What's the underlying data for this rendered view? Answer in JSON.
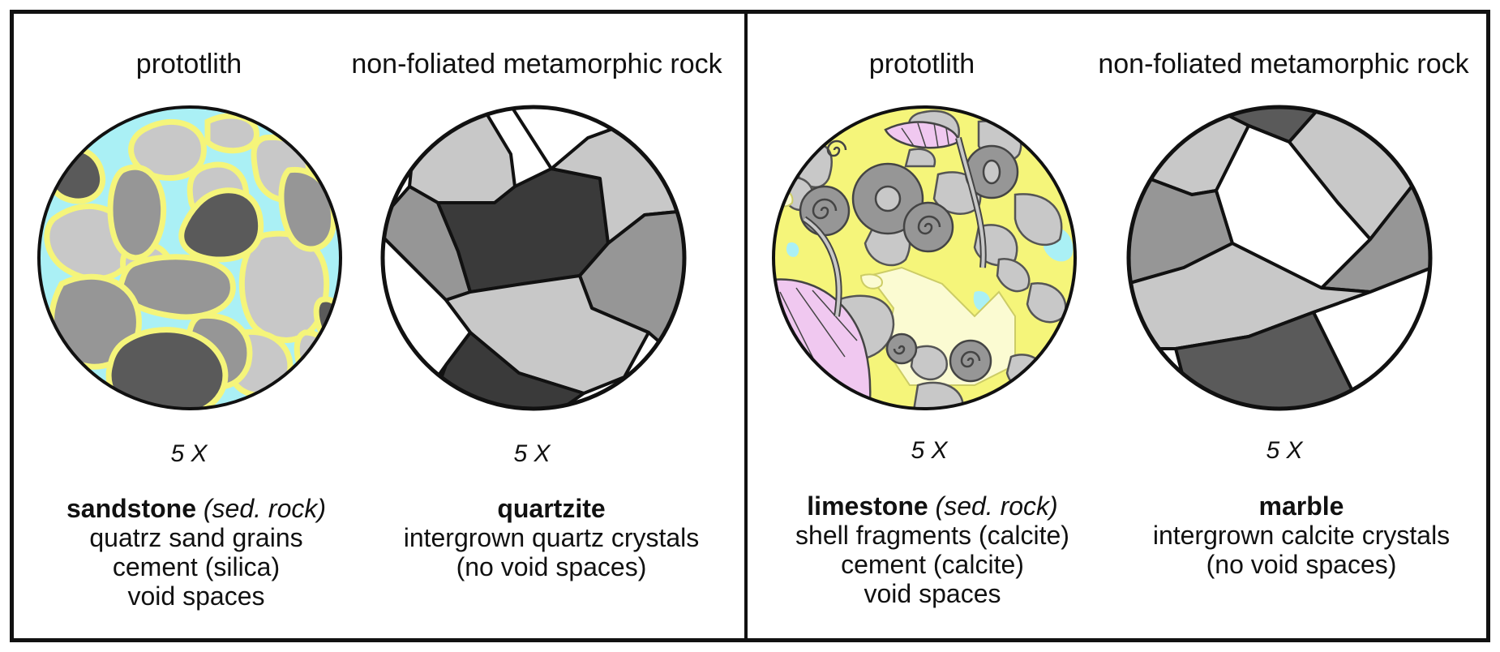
{
  "panels": [
    {
      "left": {
        "heading": "prototlith",
        "magnification": "5 X",
        "name": "sandstone",
        "qualifier": "(sed. rock)",
        "lines": [
          "quatrz sand grains",
          "cement (silica)",
          "void spaces"
        ]
      },
      "right": {
        "heading": "non-foliated metamorphic rock",
        "magnification": "5 X",
        "name": "quartzite",
        "lines": [
          "intergrown quartz crystals",
          "(no void spaces)"
        ]
      }
    },
    {
      "left": {
        "heading": "prototlith",
        "magnification": "5 X",
        "name": "limestone",
        "qualifier": "(sed. rock)",
        "lines": [
          "shell fragments (calcite)",
          "cement (calcite)",
          "void spaces"
        ]
      },
      "right": {
        "heading": "non-foliated metamorphic rock",
        "magnification": "5 X",
        "name": "marble",
        "lines": [
          "intergrown calcite crystals",
          "(no void spaces)"
        ]
      }
    }
  ],
  "colors": {
    "void": "#aaf0f5",
    "cement": "#f5f57a",
    "light_grain": "#c8c8c8",
    "mid_grain": "#969696",
    "dark_grain": "#5a5a5a",
    "darkest_grain": "#3a3a3a",
    "shell_pink": "#f0c8f0",
    "calcite_cream": "#fbfbd2"
  }
}
